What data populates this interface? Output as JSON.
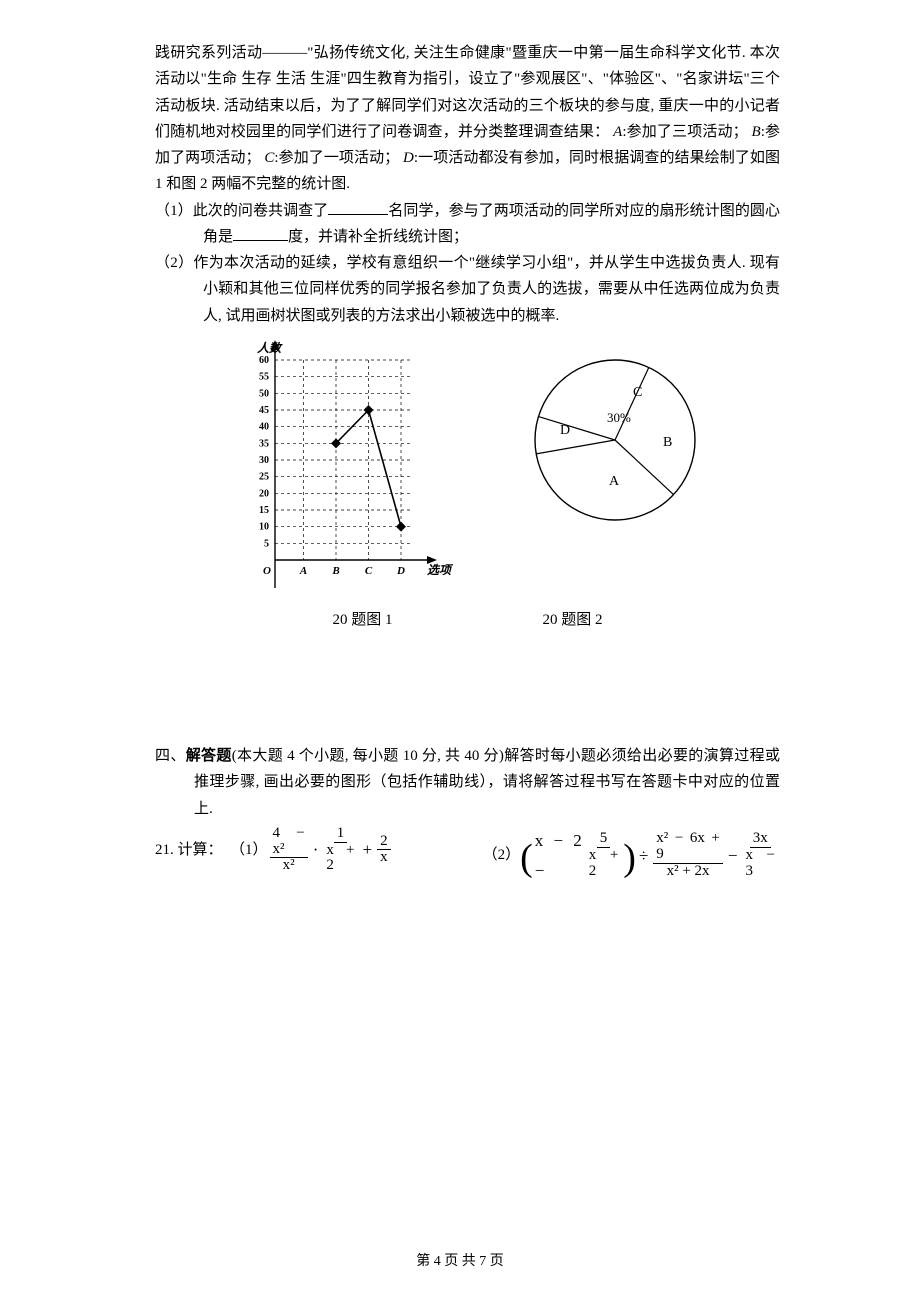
{
  "body": {
    "p1": "践研究系列活动———\"弘扬传统文化, 关注生命健康\"暨重庆一中第一届生命科学文化节. 本次活动以\"生命  生存  生活  生涯\"四生教育为指引，设立了\"参观展区\"、\"体验区\"、\"名家讲坛\"三个活动板块. 活动结束以后，为了了解同学们对这次活动的三个板块的参与度, 重庆一中的小记者们随机地对校园里的同学们进行了问卷调查，并分类整理调查结果：",
    "p1b": ":参加了三项活动；",
    "p1c": ":参加了两项活动；",
    "p1d": ":参加了一项活动；",
    "p1e": ":一项活动都没有参加，同时根据调查的结果绘制了如图 1 和图 2 两幅不完整的统计图.",
    "q1a": "（1）此次的问卷共调查了",
    "q1b": "名同学，参与了两项活动的同学所对应的扇形统计图的圆心角是",
    "q1c": "度，并请补全折线统计图；",
    "q2": "（2）作为本次活动的延续，学校有意组织一个\"继续学习小组\"，并从学生中选拔负责人. 现有小颖和其他三位同样优秀的同学报名参加了负责人的选拔，需要从中任选两位成为负责人, 试用画树状图或列表的方法求出小颖被选中的概率."
  },
  "letters": {
    "A": "A",
    "B": "B",
    "C": "C",
    "D": "D"
  },
  "line_chart": {
    "y_label": "人数",
    "x_label": "选项",
    "origin": "O",
    "y_ticks": [
      5,
      10,
      15,
      20,
      25,
      30,
      35,
      40,
      45,
      50,
      55,
      60
    ],
    "x_categories": [
      "A",
      "B",
      "C",
      "D"
    ],
    "points": [
      {
        "cat": "B",
        "val": 35
      },
      {
        "cat": "C",
        "val": 45
      },
      {
        "cat": "D",
        "val": 10
      }
    ],
    "axis_color": "#000000",
    "grid_color": "#000000",
    "grid_dash": "3,3",
    "point_color": "#000000",
    "line_color": "#000000",
    "label_fontsize": 12,
    "tick_fontsize": 10,
    "bg": "#ffffff"
  },
  "pie_chart": {
    "slices": [
      {
        "label": "C",
        "pct": 30,
        "label_pos": "upper",
        "show_pct": true
      },
      {
        "label": "D",
        "label_pos": "left"
      },
      {
        "label": "A",
        "label_pos": "lower"
      },
      {
        "label": "B",
        "label_pos": "right"
      }
    ],
    "stroke": "#000000",
    "fill": "#ffffff",
    "label_fontsize": 14,
    "pct_text": "30%"
  },
  "captions": {
    "fig1": "20 题图 1",
    "fig2": "20 题图 2"
  },
  "section4": {
    "head_a": "四、",
    "head_b": "解答题",
    "head_c": "(本大题 4 个小题, 每小题 10 分, 共 40 分)解答时每小题必须给出必要的演算过程或推理步骤, 画出必要的图形（包括作辅助线），请将解答过程书写在答题卡中对应的位置上."
  },
  "q21": {
    "prefix": "21. 计算：  （1）",
    "part2_prefix": "（2）",
    "expr1": {
      "f1_num": "4 − x²",
      "f1_den": "x²",
      "f2_num": "1",
      "f2_den": "x + 2",
      "f3_num": "2",
      "f3_den": "x"
    },
    "expr2": {
      "inner_a": "x − 2 −",
      "f1_num": "5",
      "f1_den": "x + 2",
      "div": "÷",
      "f2_num": "x² − 6x + 9",
      "f2_den": "x² + 2x",
      "minus": "−",
      "f3_num": "3x",
      "f3_den": "x − 3"
    }
  },
  "footer": "第 4 页 共 7 页"
}
